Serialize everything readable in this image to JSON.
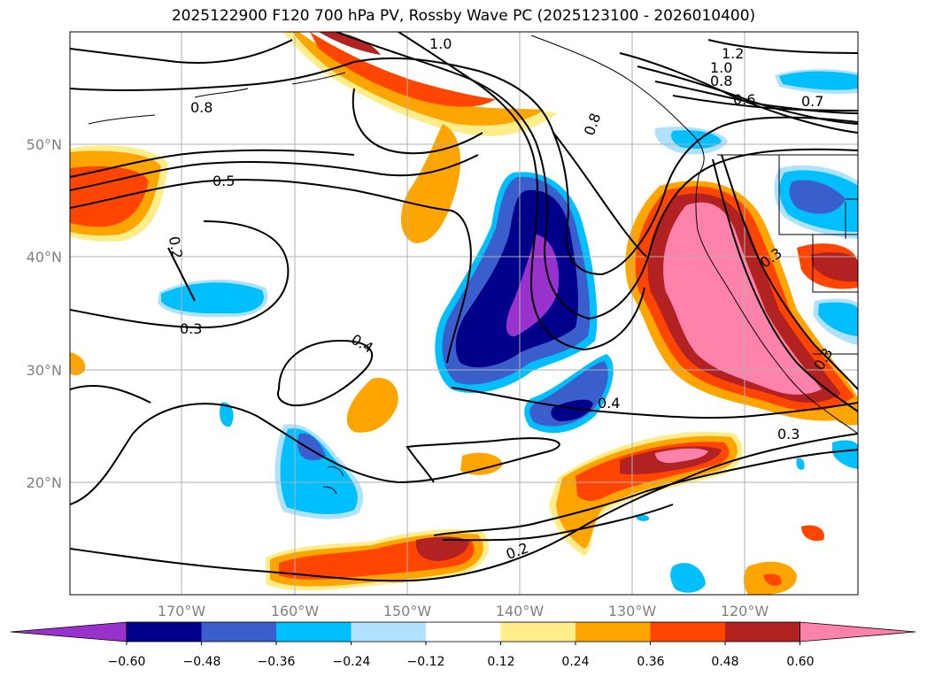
{
  "title": "2025122900 F120 700 hPa PV, Rossby Wave PC (2025123100 - 2026010400)",
  "lat_labels": [
    "50°N",
    "40°N",
    "30°N",
    "20°N"
  ],
  "lon_labels": [
    "170°W",
    "160°W",
    "150°W",
    "140°W",
    "130°W",
    "120°W"
  ],
  "contour_labels": [
    "1.0",
    "1.2",
    "1.0",
    "0.8",
    "0.6",
    "0.7",
    "0.8",
    "0.8",
    "0.5",
    "0.2",
    "0.3",
    "0.4",
    "0.4",
    "0.3",
    "0.3",
    "0.2",
    "0.3"
  ],
  "colorbar": {
    "ticks": [
      "−0.60",
      "−0.48",
      "−0.36",
      "−0.24",
      "−0.12",
      "0.12",
      "0.24",
      "0.36",
      "0.48",
      "0.60"
    ],
    "colors": [
      "#9932cc",
      "#00008b",
      "#3a5fcd",
      "#00bfff",
      "#b0e2ff",
      "#ffffff",
      "#ffec8b",
      "#ffa500",
      "#ff4500",
      "#b22222",
      "#ff82ab"
    ]
  },
  "colors": {
    "under": "#9932cc",
    "neg_strong": "#00008b",
    "neg_mid": "#3a5fcd",
    "neg_light": "#00bfff",
    "neg_faint": "#b0e2ff",
    "pos_faint": "#ffec8b",
    "pos_light": "#ffa500",
    "pos_mid": "#ff4500",
    "pos_strong": "#b22222",
    "over": "#ff82ab",
    "grid": "#b0b0b0"
  }
}
